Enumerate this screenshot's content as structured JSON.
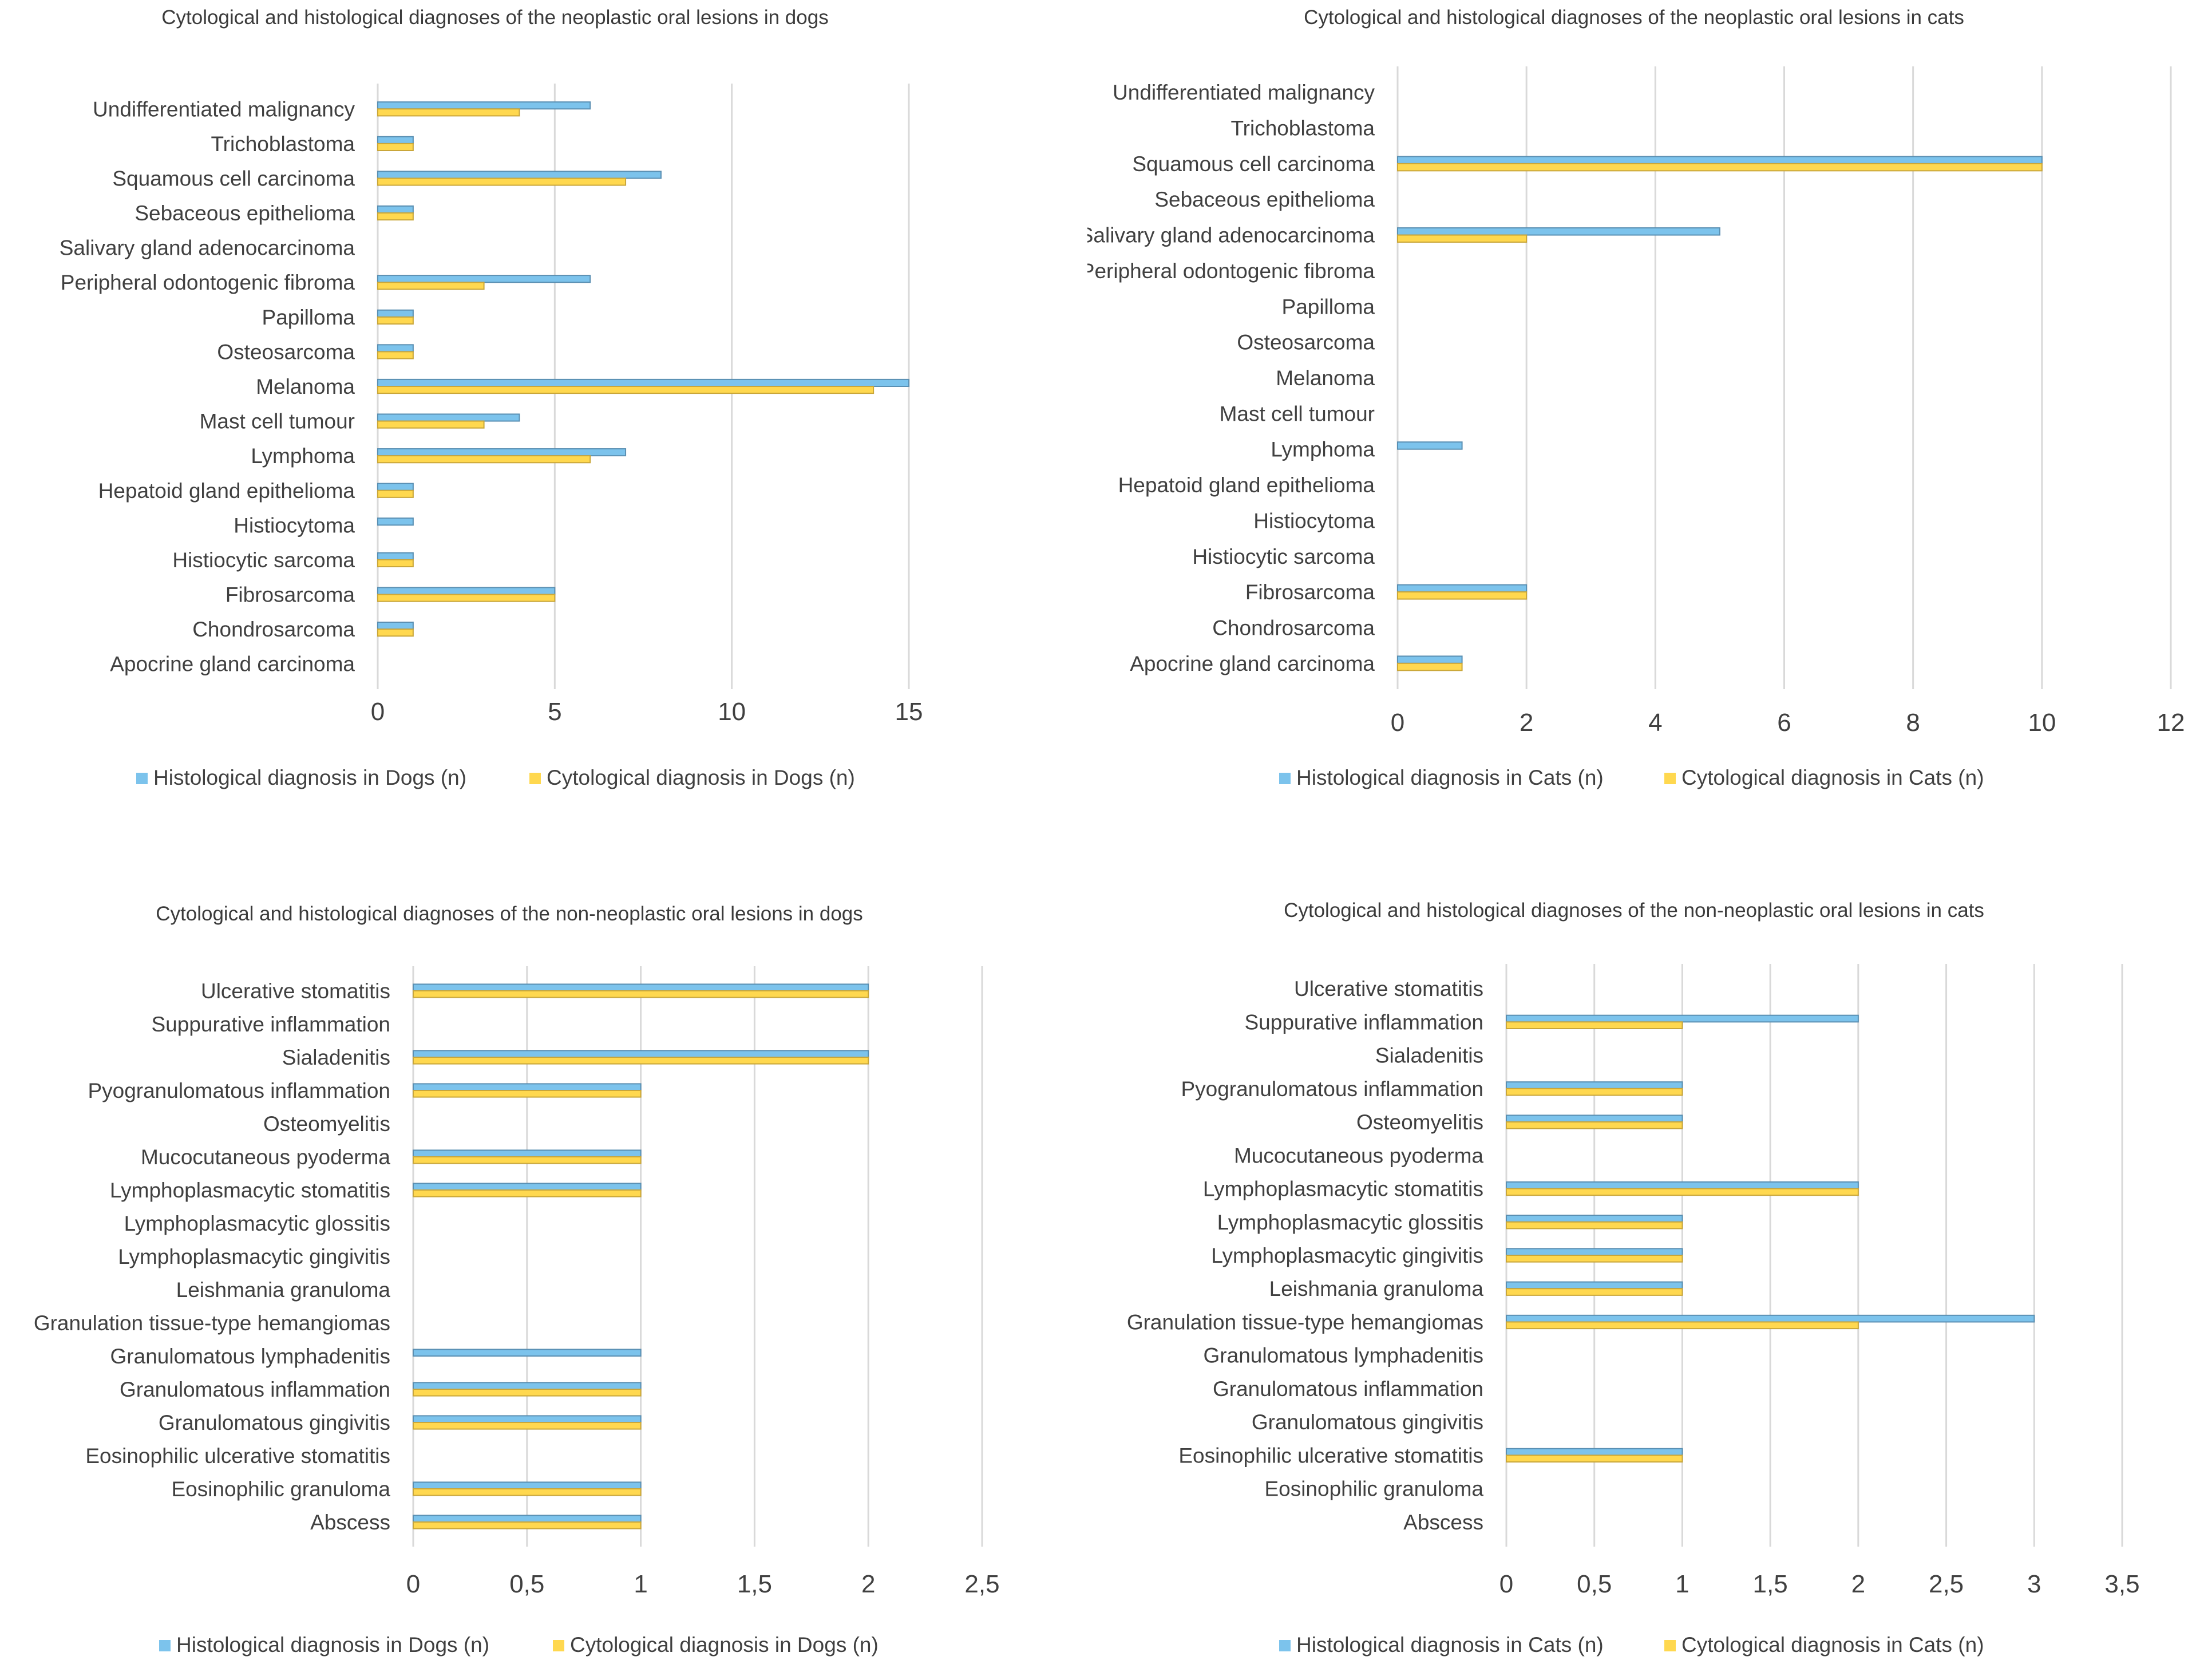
{
  "colors": {
    "histological": "#7cc3ec",
    "cytological": "#ffd84f",
    "grid": "#d9d9d9",
    "text": "#404040"
  },
  "chart_data": [
    {
      "type": "bar",
      "orientation": "horizontal",
      "title": "Cytological and histological diagnoses of the neoplastic oral lesions in dogs",
      "categories": [
        "Undifferentiated malignancy",
        "Trichoblastoma",
        "Squamous cell carcinoma",
        "Sebaceous epithelioma",
        "Salivary gland adenocarcinoma",
        "Peripheral odontogenic fibroma",
        "Papilloma",
        "Osteosarcoma",
        "Melanoma",
        "Mast cell tumour",
        "Lymphoma",
        "Hepatoid gland epithelioma",
        "Histiocytoma",
        "Histiocytic sarcoma",
        "Fibrosarcoma",
        "Chondrosarcoma",
        "Apocrine gland carcinoma"
      ],
      "series": [
        {
          "name": "Histological diagnosis in Dogs (n)",
          "values": [
            6,
            1,
            8,
            1,
            0,
            6,
            1,
            1,
            15,
            4,
            7,
            1,
            1,
            1,
            5,
            1,
            0
          ]
        },
        {
          "name": "Cytological diagnosis in Dogs (n)",
          "values": [
            4,
            1,
            7,
            1,
            0,
            3,
            1,
            1,
            14,
            3,
            6,
            1,
            0,
            1,
            5,
            1,
            0
          ]
        }
      ],
      "ticks": [
        "0",
        "5",
        "10",
        "15"
      ],
      "xlim": [
        0,
        15
      ],
      "legend": "bottom",
      "grid": true
    },
    {
      "type": "bar",
      "orientation": "horizontal",
      "title": "Cytological and histological diagnoses of the neoplastic oral lesions in cats",
      "categories": [
        "Undifferentiated malignancy",
        "Trichoblastoma",
        "Squamous cell carcinoma",
        "Sebaceous epithelioma",
        "Salivary gland adenocarcinoma",
        "Peripheral odontogenic fibroma",
        "Papilloma",
        "Osteosarcoma",
        "Melanoma",
        "Mast cell tumour",
        "Lymphoma",
        "Hepatoid gland epithelioma",
        "Histiocytoma",
        "Histiocytic sarcoma",
        "Fibrosarcoma",
        "Chondrosarcoma",
        "Apocrine gland carcinoma"
      ],
      "series": [
        {
          "name": "Histological diagnosis in Cats (n)",
          "values": [
            0,
            0,
            10,
            0,
            5,
            0,
            0,
            0,
            0,
            0,
            1,
            0,
            0,
            0,
            2,
            0,
            1
          ]
        },
        {
          "name": "Cytological diagnosis in Cats (n)",
          "values": [
            0,
            0,
            10,
            0,
            2,
            0,
            0,
            0,
            0,
            0,
            0,
            0,
            0,
            0,
            2,
            0,
            1
          ]
        }
      ],
      "ticks": [
        "0",
        "2",
        "4",
        "6",
        "8",
        "10",
        "12"
      ],
      "xlim": [
        0,
        12
      ],
      "legend": "bottom",
      "grid": true
    },
    {
      "type": "bar",
      "orientation": "horizontal",
      "title": "Cytological and histological diagnoses of the non-neoplastic oral lesions in dogs",
      "categories": [
        "Ulcerative stomatitis",
        "Suppurative inflammation",
        "Sialadenitis",
        "Pyogranulomatous inflammation",
        "Osteomyelitis",
        "Mucocutaneous pyoderma",
        "Lymphoplasmacytic stomatitis",
        "Lymphoplasmacytic glossitis",
        "Lymphoplasmacytic gingivitis",
        "Leishmania granuloma",
        "Granulation tissue-type hemangiomas",
        "Granulomatous lymphadenitis",
        "Granulomatous inflammation",
        "Granulomatous gingivitis",
        "Eosinophilic ulcerative stomatitis",
        "Eosinophilic granuloma",
        "Abscess"
      ],
      "series": [
        {
          "name": "Histological diagnosis in Dogs (n)",
          "values": [
            2,
            0,
            2,
            1,
            0,
            1,
            1,
            0,
            0,
            0,
            0,
            1,
            1,
            1,
            0,
            1,
            1
          ]
        },
        {
          "name": "Cytological diagnosis in Dogs (n)",
          "values": [
            2,
            0,
            2,
            1,
            0,
            1,
            1,
            0,
            0,
            0,
            0,
            0,
            1,
            1,
            0,
            1,
            1
          ]
        }
      ],
      "ticks": [
        "0",
        "0,5",
        "1",
        "1,5",
        "2",
        "2,5"
      ],
      "xlim": [
        0,
        2.5
      ],
      "legend": "bottom",
      "grid": true
    },
    {
      "type": "bar",
      "orientation": "horizontal",
      "title": "Cytological and histological diagnoses of the non-neoplastic oral lesions in cats",
      "categories": [
        "Ulcerative stomatitis",
        "Suppurative inflammation",
        "Sialadenitis",
        "Pyogranulomatous inflammation",
        "Osteomyelitis",
        "Mucocutaneous pyoderma",
        "Lymphoplasmacytic stomatitis",
        "Lymphoplasmacytic glossitis",
        "Lymphoplasmacytic gingivitis",
        "Leishmania granuloma",
        "Granulation tissue-type hemangiomas",
        "Granulomatous lymphadenitis",
        "Granulomatous inflammation",
        "Granulomatous gingivitis",
        "Eosinophilic ulcerative stomatitis",
        "Eosinophilic granuloma",
        "Abscess"
      ],
      "series": [
        {
          "name": "Histological diagnosis in Cats (n)",
          "values": [
            0,
            2,
            0,
            1,
            1,
            0,
            2,
            1,
            1,
            1,
            3,
            0,
            0,
            0,
            1,
            0,
            0
          ]
        },
        {
          "name": "Cytological diagnosis in Cats (n)",
          "values": [
            0,
            1,
            0,
            1,
            1,
            0,
            2,
            1,
            1,
            1,
            2,
            0,
            0,
            0,
            1,
            0,
            0
          ]
        }
      ],
      "ticks": [
        "0",
        "0,5",
        "1",
        "1,5",
        "2",
        "2,5",
        "3",
        "3,5"
      ],
      "xlim": [
        0,
        3.5
      ],
      "legend": "bottom",
      "grid": true
    }
  ]
}
